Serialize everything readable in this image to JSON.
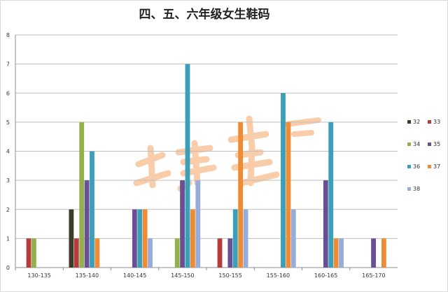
{
  "chart_data": {
    "type": "bar",
    "title": "四、五、六年级女生鞋码",
    "xlabel": "",
    "ylabel": "",
    "ylim": [
      0,
      8
    ],
    "yticks": [
      0,
      1,
      2,
      3,
      4,
      5,
      6,
      7,
      8
    ],
    "grid": true,
    "legend_position": "right",
    "categories": [
      "130-135",
      "135-140",
      "140-145",
      "145-150",
      "150-155",
      "155-160",
      "160-165",
      "165-170"
    ],
    "series": [
      {
        "name": "32",
        "color": "#3c3c28",
        "values": [
          0,
          2,
          0,
          0,
          0,
          0,
          0,
          0
        ]
      },
      {
        "name": "33",
        "color": "#b63b3b",
        "values": [
          1,
          1,
          0,
          0,
          1,
          0,
          0,
          0
        ]
      },
      {
        "name": "34",
        "color": "#94b04a",
        "values": [
          1,
          5,
          0,
          1,
          0,
          0,
          0,
          0
        ]
      },
      {
        "name": "35",
        "color": "#6a4f95",
        "values": [
          0,
          3,
          2,
          3,
          1,
          0,
          3,
          1
        ]
      },
      {
        "name": "36",
        "color": "#3a9fb8",
        "values": [
          0,
          4,
          2,
          7,
          2,
          6,
          5,
          0
        ]
      },
      {
        "name": "37",
        "color": "#ef8a35",
        "values": [
          0,
          1,
          2,
          2,
          5,
          5,
          1,
          1
        ]
      },
      {
        "name": "38",
        "color": "#97acd8",
        "values": [
          0,
          0,
          1,
          3,
          2,
          2,
          1,
          0
        ]
      }
    ]
  }
}
